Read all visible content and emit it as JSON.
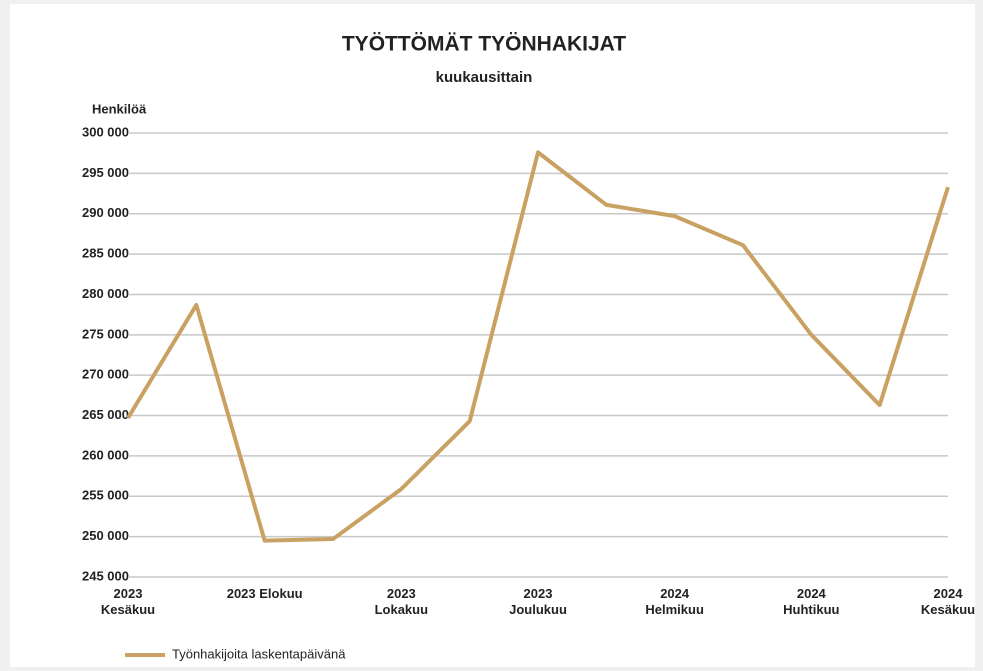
{
  "chart_data": {
    "type": "line",
    "title": "TYÖTTÖMÄT TYÖNHAKIJAT",
    "subtitle": "kuukausittain",
    "y_label": "Henkilöä",
    "categories": [
      "2023 Kesäkuu",
      null,
      "2023 Elokuu",
      null,
      "2023 Lokakuu",
      null,
      "2023 Joulukuu",
      null,
      "2024 Helmikuu",
      null,
      "2024 Huhtikuu",
      null,
      "2024 Kesäkuu"
    ],
    "series": [
      {
        "name": "Työnhakijoita laskentapäivänä",
        "color": "#c9a263",
        "values": [
          264700,
          278700,
          249500,
          249700,
          255900,
          264300,
          297600,
          291100,
          289700,
          286100,
          275000,
          266300,
          293300
        ]
      }
    ],
    "ylim": [
      245000,
      300000
    ],
    "yticks": [
      {
        "value": 245000,
        "label": "245 000"
      },
      {
        "value": 250000,
        "label": "250 000"
      },
      {
        "value": 255000,
        "label": "255 000"
      },
      {
        "value": 260000,
        "label": "260 000"
      },
      {
        "value": 265000,
        "label": "265 000"
      },
      {
        "value": 270000,
        "label": "270 000"
      },
      {
        "value": 275000,
        "label": "275 000"
      },
      {
        "value": 280000,
        "label": "280 000"
      },
      {
        "value": 285000,
        "label": "285 000"
      },
      {
        "value": 290000,
        "label": "290 000"
      },
      {
        "value": 295000,
        "label": "295 000"
      },
      {
        "value": 300000,
        "label": "300 000"
      }
    ],
    "grid": true,
    "legend": "bottom-left"
  }
}
